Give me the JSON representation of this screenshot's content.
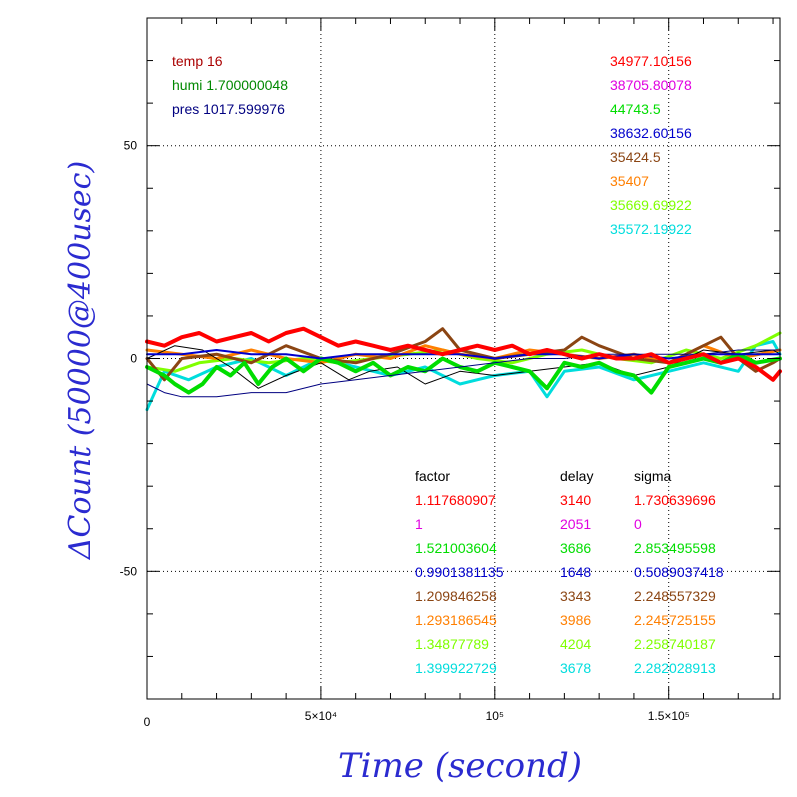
{
  "chart_data": {
    "type": "line",
    "xlabel": "Time (second)",
    "ylabel": "ΔCount (50000@400usec)",
    "xlim": [
      0,
      182000
    ],
    "ylim": [
      -80,
      80
    ],
    "grid": true,
    "x_ticks": [
      {
        "value": 0,
        "label": "0"
      },
      {
        "value": 50000,
        "label": "5×10⁴"
      },
      {
        "value": 100000,
        "label": "10⁵"
      },
      {
        "value": 150000,
        "label": "1.5×10⁵"
      }
    ],
    "y_ticks": [
      {
        "value": 50,
        "label": "50"
      },
      {
        "value": 0,
        "label": "0"
      },
      {
        "value": -50,
        "label": "-50"
      }
    ],
    "env_info": [
      {
        "text": "temp 16",
        "color": "#aa0000"
      },
      {
        "text": "humi 1.700000048",
        "color": "#008800"
      },
      {
        "text": "pres 1017.599976",
        "color": "#000080"
      }
    ],
    "totals": [
      {
        "text": "34977.10156",
        "color": "#ff0000"
      },
      {
        "text": "38705.80078",
        "color": "#e000e0"
      },
      {
        "text": "44743.5",
        "color": "#00dd00"
      },
      {
        "text": "38632.60156",
        "color": "#0000cc"
      },
      {
        "text": "35424.5",
        "color": "#8b4513"
      },
      {
        "text": "35407",
        "color": "#ff7f00"
      },
      {
        "text": "35669.69922",
        "color": "#7fff00"
      },
      {
        "text": "35572.19922",
        "color": "#00dddd"
      }
    ],
    "table": {
      "headers": [
        "factor",
        "delay",
        "sigma"
      ],
      "rows": [
        {
          "factor": "1.117680907",
          "delay": "3140",
          "sigma": "1.730639696",
          "color": "#ff0000"
        },
        {
          "factor": "1",
          "delay": "2051",
          "sigma": "0",
          "color": "#e000e0"
        },
        {
          "factor": "1.521003604",
          "delay": "3686",
          "sigma": "2.853495598",
          "color": "#00dd00"
        },
        {
          "factor": "0.9901381135",
          "delay": "1648",
          "sigma": "0.5089037418",
          "color": "#0000cc"
        },
        {
          "factor": "1.209846258",
          "delay": "3343",
          "sigma": "2.248557329",
          "color": "#8b4513"
        },
        {
          "factor": "1.293186545",
          "delay": "3986",
          "sigma": "2.245725155",
          "color": "#ff7f00"
        },
        {
          "factor": "1.34877789",
          "delay": "4204",
          "sigma": "2.258740187",
          "color": "#7fff00"
        },
        {
          "factor": "1.399922729",
          "delay": "3678",
          "sigma": "2.282028913",
          "color": "#00dddd"
        }
      ]
    },
    "series": [
      {
        "color": "#00dddd",
        "width": 3,
        "x": [
          0,
          5000,
          12000,
          20000,
          30000,
          40000,
          50000,
          60000,
          70000,
          80000,
          90000,
          100000,
          110000,
          115000,
          120000,
          130000,
          140000,
          150000,
          160000,
          170000,
          175000,
          180000,
          182000
        ],
        "y": [
          -12,
          -3,
          -5,
          -2,
          0,
          -4,
          0,
          -2,
          -4,
          -2,
          -6,
          -4,
          -3,
          -9,
          -3,
          -2,
          -5,
          -3,
          -1,
          -3,
          3,
          4,
          1
        ]
      },
      {
        "color": "#7fff00",
        "width": 3,
        "x": [
          0,
          8000,
          15000,
          25000,
          35000,
          45000,
          55000,
          65000,
          75000,
          85000,
          95000,
          105000,
          115000,
          125000,
          135000,
          145000,
          155000,
          165000,
          175000,
          182000
        ],
        "y": [
          -2,
          -3,
          -1,
          0,
          -1,
          0,
          -1,
          0,
          1,
          2,
          0,
          -1,
          1,
          2,
          0,
          -1,
          2,
          0,
          3,
          6
        ]
      },
      {
        "color": "#ff7f00",
        "width": 3,
        "x": [
          0,
          10000,
          20000,
          30000,
          40000,
          50000,
          60000,
          70000,
          80000,
          90000,
          100000,
          110000,
          120000,
          130000,
          140000,
          150000,
          160000,
          170000,
          182000
        ],
        "y": [
          2,
          1,
          0,
          2,
          0,
          -1,
          1,
          0,
          3,
          1,
          0,
          2,
          1,
          0,
          1,
          -1,
          3,
          0,
          2
        ]
      },
      {
        "color": "#8b4513",
        "width": 3,
        "x": [
          0,
          5000,
          10000,
          20000,
          30000,
          40000,
          50000,
          60000,
          70000,
          80000,
          85000,
          90000,
          100000,
          110000,
          120000,
          125000,
          130000,
          140000,
          150000,
          160000,
          165000,
          170000,
          175000,
          180000,
          182000
        ],
        "y": [
          0,
          -5,
          0,
          1,
          -1,
          3,
          0,
          -1,
          1,
          4,
          7,
          2,
          0,
          1,
          2,
          5,
          3,
          0,
          -1,
          3,
          5,
          0,
          -3,
          -1,
          0
        ]
      },
      {
        "color": "#000000",
        "width": 1,
        "x": [
          0,
          8000,
          16000,
          24000,
          32000,
          40000,
          50000,
          58000,
          64000,
          72000,
          80000,
          90000,
          100000,
          110000,
          120000,
          130000,
          140000,
          150000,
          160000,
          170000,
          180000,
          182000
        ],
        "y": [
          0,
          3,
          2,
          -2,
          -7,
          -4,
          -1,
          -5,
          -3,
          -2,
          -6,
          -3,
          -4,
          -3,
          -2,
          -1,
          -4,
          -2,
          2,
          1,
          2,
          1
        ]
      },
      {
        "color": "#00dd00",
        "width": 4,
        "x": [
          0,
          5000,
          8000,
          12000,
          16000,
          20000,
          24000,
          28000,
          32000,
          36000,
          40000,
          45000,
          50000,
          55000,
          60000,
          65000,
          70000,
          75000,
          80000,
          85000,
          90000,
          95000,
          100000,
          105000,
          110000,
          115000,
          120000,
          125000,
          130000,
          135000,
          140000,
          145000,
          150000,
          155000,
          160000,
          165000,
          170000,
          175000,
          182000
        ],
        "y": [
          -2,
          -4,
          -6,
          -8,
          -6,
          -2,
          -4,
          -1,
          -6,
          -2,
          0,
          -3,
          0,
          -1,
          -3,
          -1,
          -4,
          -2,
          -3,
          0,
          -2,
          -3,
          -1,
          -2,
          -3,
          -7,
          -1,
          -2,
          -1,
          -3,
          -4,
          -8,
          -2,
          -1,
          0,
          -1,
          1,
          -1,
          0
        ]
      },
      {
        "color": "#0000cc",
        "width": 2,
        "x": [
          0,
          10000,
          20000,
          30000,
          40000,
          50000,
          60000,
          70000,
          80000,
          90000,
          100000,
          110000,
          120000,
          130000,
          140000,
          150000,
          160000,
          170000,
          182000
        ],
        "y": [
          1,
          1,
          2,
          1,
          1,
          0,
          1,
          1,
          1,
          1,
          0,
          1,
          1,
          0,
          1,
          0,
          1,
          1,
          1
        ]
      },
      {
        "color": "#000080",
        "width": 1,
        "x": [
          0,
          5000,
          10000,
          20000,
          30000,
          40000,
          50000,
          60000,
          70000,
          80000,
          90000,
          100000,
          110000,
          120000,
          130000,
          140000,
          150000,
          160000,
          170000,
          182000
        ],
        "y": [
          -6,
          -8,
          -9,
          -9,
          -8,
          -8,
          -6,
          -5,
          -4,
          -3,
          -2,
          -1,
          0,
          0,
          1,
          1,
          1,
          1,
          2,
          2
        ]
      },
      {
        "color": "#ff0000",
        "width": 4,
        "x": [
          0,
          5000,
          10000,
          15000,
          20000,
          25000,
          30000,
          35000,
          40000,
          45000,
          50000,
          55000,
          60000,
          65000,
          70000,
          75000,
          80000,
          85000,
          90000,
          95000,
          100000,
          105000,
          110000,
          115000,
          120000,
          125000,
          130000,
          135000,
          140000,
          145000,
          150000,
          155000,
          160000,
          165000,
          170000,
          175000,
          180000,
          182000
        ],
        "y": [
          4,
          3,
          5,
          6,
          4,
          5,
          6,
          4,
          6,
          7,
          5,
          3,
          4,
          3,
          2,
          3,
          2,
          1,
          2,
          3,
          2,
          3,
          1,
          2,
          1,
          0,
          1,
          0,
          0,
          1,
          -1,
          0,
          1,
          -1,
          0,
          -2,
          -5,
          -3
        ]
      }
    ]
  }
}
